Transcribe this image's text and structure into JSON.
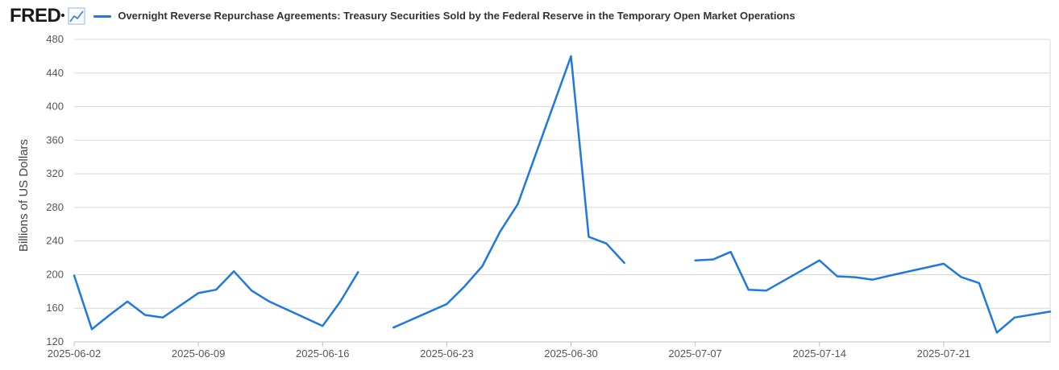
{
  "header": {
    "logo_text": "FRED",
    "trend_icon": "line-chart-icon",
    "series_title": "Overnight Reverse Repurchase Agreements: Treasury Securities Sold by the Federal Reserve in the Temporary Open Market Operations"
  },
  "colors": {
    "series": "#1f77e0",
    "grid": "#d8d8d8",
    "axis": "#bfbfbf"
  },
  "chart_data": {
    "type": "line",
    "title": "Overnight Reverse Repurchase Agreements: Treasury Securities Sold by the Federal Reserve in the Temporary Open Market Operations",
    "xlabel": "",
    "ylabel": "Billions of US Dollars",
    "ylim": [
      120,
      480
    ],
    "yticks": [
      120,
      160,
      200,
      240,
      280,
      320,
      360,
      400,
      440,
      480
    ],
    "xlim": [
      "2025-06-02",
      "2025-07-27"
    ],
    "xticks": [
      "2025-06-02",
      "2025-06-09",
      "2025-06-16",
      "2025-06-23",
      "2025-06-30",
      "2025-07-07",
      "2025-07-14",
      "2025-07-21"
    ],
    "grid": true,
    "series": [
      {
        "name": "Overnight Reverse Repurchase Agreements: Treasury Securities Sold by the Federal Reserve in the Temporary Open Market Operations",
        "points": [
          {
            "date": "2025-06-02",
            "value": 199
          },
          {
            "date": "2025-06-03",
            "value": 135
          },
          {
            "date": "2025-06-04",
            "value": 152
          },
          {
            "date": "2025-06-05",
            "value": 168
          },
          {
            "date": "2025-06-06",
            "value": 152
          },
          {
            "date": "2025-06-07",
            "value": 149
          },
          {
            "date": "2025-06-09",
            "value": 178
          },
          {
            "date": "2025-06-10",
            "value": 182
          },
          {
            "date": "2025-06-11",
            "value": 204
          },
          {
            "date": "2025-06-12",
            "value": 181
          },
          {
            "date": "2025-06-13",
            "value": 168
          },
          {
            "date": "2025-06-16",
            "value": 139
          },
          {
            "date": "2025-06-17",
            "value": 168
          },
          {
            "date": "2025-06-18",
            "value": 203
          },
          {
            "date": "2025-06-19",
            "value": null
          },
          {
            "date": "2025-06-20",
            "value": 137
          },
          {
            "date": "2025-06-23",
            "value": 165
          },
          {
            "date": "2025-06-24",
            "value": 186
          },
          {
            "date": "2025-06-25",
            "value": 210
          },
          {
            "date": "2025-06-26",
            "value": 251
          },
          {
            "date": "2025-06-27",
            "value": 284
          },
          {
            "date": "2025-06-30",
            "value": 460
          },
          {
            "date": "2025-07-01",
            "value": 245
          },
          {
            "date": "2025-07-02",
            "value": 237
          },
          {
            "date": "2025-07-03",
            "value": 214
          },
          {
            "date": "2025-07-04",
            "value": null
          },
          {
            "date": "2025-07-07",
            "value": 217
          },
          {
            "date": "2025-07-08",
            "value": 218
          },
          {
            "date": "2025-07-09",
            "value": 227
          },
          {
            "date": "2025-07-10",
            "value": 182
          },
          {
            "date": "2025-07-11",
            "value": 181
          },
          {
            "date": "2025-07-14",
            "value": 217
          },
          {
            "date": "2025-07-15",
            "value": 198
          },
          {
            "date": "2025-07-16",
            "value": 197
          },
          {
            "date": "2025-07-17",
            "value": 194
          },
          {
            "date": "2025-07-18",
            "value": 199
          },
          {
            "date": "2025-07-21",
            "value": 213
          },
          {
            "date": "2025-07-22",
            "value": 197
          },
          {
            "date": "2025-07-23",
            "value": 190
          },
          {
            "date": "2025-07-24",
            "value": 131
          },
          {
            "date": "2025-07-25",
            "value": 149
          },
          {
            "date": "2025-07-27",
            "value": 156
          }
        ]
      }
    ]
  }
}
